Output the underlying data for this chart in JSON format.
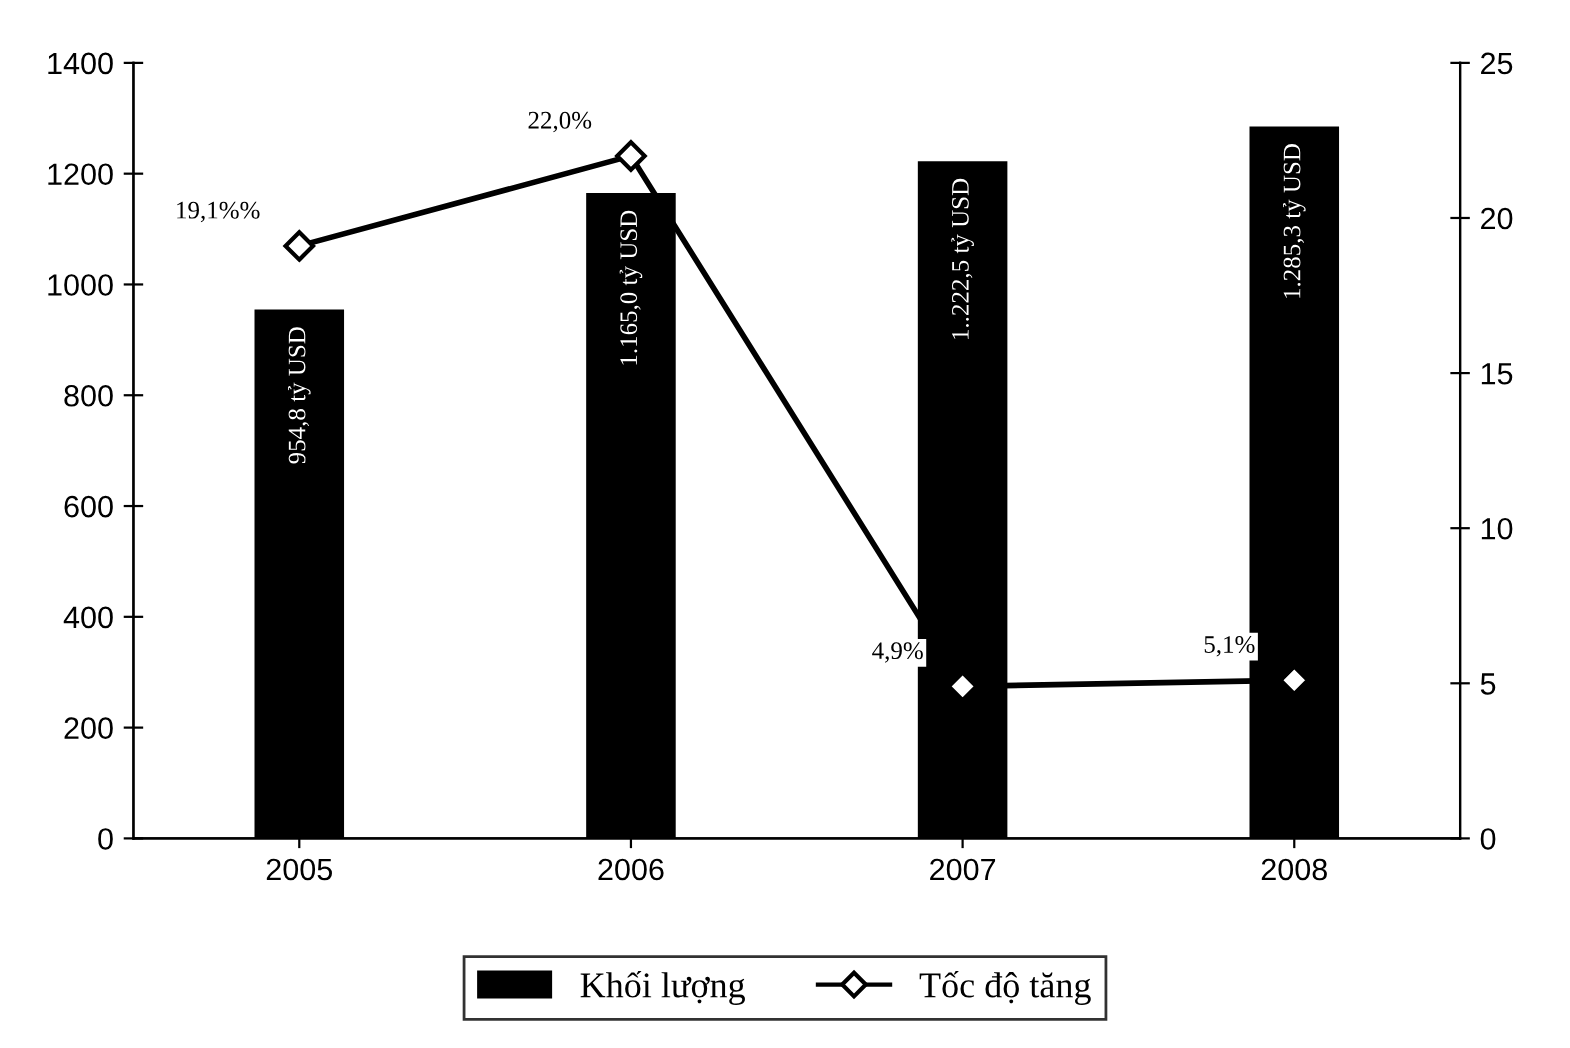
{
  "chart_data": {
    "type": "bar",
    "categories": [
      "2005",
      "2006",
      "2007",
      "2008"
    ],
    "series": [
      {
        "name": "Khối lượng",
        "color": "#000000",
        "values": [
          954.8,
          1165.0,
          1222.5,
          1285.3
        ],
        "value_labels": [
          "954,8 tỷ USD",
          "1.165,0 tỷ USD",
          "1..222,5 tỷ USD",
          "1.285,3 tỷ USD"
        ]
      },
      {
        "name": "Tốc độ tăng",
        "type": "line",
        "axis": "y2",
        "color": "#000000",
        "marker": "diamond",
        "values": [
          19.1,
          22.0,
          4.9,
          5.1
        ],
        "value_labels": [
          "19,1%%",
          "22,0%",
          "4,9%",
          "5,1%"
        ]
      }
    ],
    "ylim": [
      0,
      1400
    ],
    "yticks": [
      0,
      200,
      400,
      600,
      800,
      1000,
      1200,
      1400
    ],
    "y2lim": [
      0,
      25
    ],
    "y2ticks": [
      0,
      5,
      10,
      15,
      20,
      25
    ],
    "grid": false,
    "legend": "bottom"
  }
}
